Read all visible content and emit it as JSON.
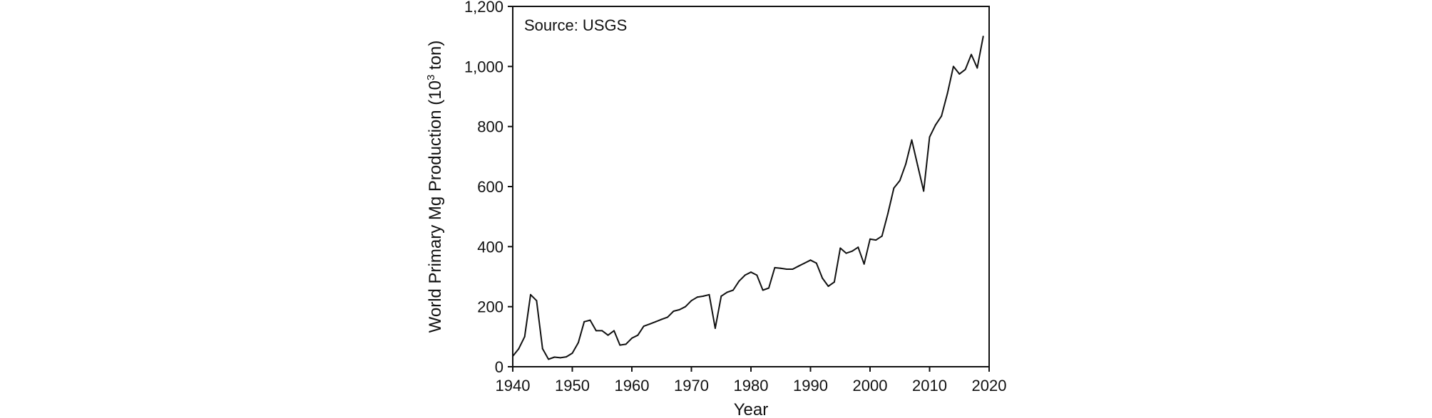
{
  "chart_data": {
    "type": "line",
    "annotation": "Source: USGS",
    "xlabel": "Year",
    "ylabel": "World Primary Mg Production (10",
    "ylabel_sup": "3",
    "ylabel_end": " ton)",
    "xlim": [
      1940,
      2020
    ],
    "ylim": [
      0,
      1200
    ],
    "x_ticks": [
      1940,
      1950,
      1960,
      1970,
      1980,
      1990,
      2000,
      2010,
      2020
    ],
    "x_tick_labels": [
      "1940",
      "1950",
      "1960",
      "1970",
      "1980",
      "1990",
      "2000",
      "2010",
      "2020"
    ],
    "y_ticks": [
      0,
      200,
      400,
      600,
      800,
      1000,
      1200
    ],
    "y_tick_labels": [
      "0",
      "200",
      "400",
      "600",
      "800",
      "1,000",
      "1,200"
    ],
    "grid": false,
    "legend": "none",
    "line_color": "#111111",
    "series": [
      {
        "x": [
          1940,
          1941,
          1942,
          1943,
          1944,
          1945,
          1946,
          1947,
          1948,
          1949,
          1950,
          1951,
          1952,
          1953,
          1954,
          1955,
          1956,
          1957,
          1958,
          1959,
          1960,
          1961,
          1962,
          1963,
          1964,
          1965,
          1966,
          1967,
          1968,
          1969,
          1970,
          1971,
          1972,
          1973,
          1974,
          1975,
          1976,
          1977,
          1978,
          1979,
          1980,
          1981,
          1982,
          1983,
          1984,
          1985,
          1986,
          1987,
          1988,
          1989,
          1990,
          1991,
          1992,
          1993,
          1994,
          1995,
          1996,
          1997,
          1998,
          1999,
          2000,
          2001,
          2002,
          2003,
          2004,
          2005,
          2006,
          2007,
          2008,
          2009,
          2010,
          2011,
          2012,
          2013,
          2014,
          2015,
          2016,
          2017,
          2018,
          2019
        ],
        "values": [
          35,
          60,
          100,
          240,
          220,
          60,
          25,
          32,
          30,
          33,
          45,
          80,
          150,
          155,
          120,
          120,
          105,
          120,
          72,
          75,
          95,
          105,
          135,
          142,
          150,
          158,
          165,
          185,
          190,
          200,
          220,
          232,
          235,
          240,
          128,
          235,
          248,
          255,
          285,
          305,
          315,
          305,
          255,
          262,
          330,
          328,
          325,
          325,
          335,
          345,
          355,
          345,
          295,
          268,
          282,
          395,
          378,
          385,
          398,
          342,
          425,
          422,
          435,
          510,
          595,
          620,
          675,
          755,
          670,
          585,
          765,
          805,
          835,
          910,
          1000,
          975,
          990,
          1040,
          995,
          1100
        ]
      }
    ]
  }
}
